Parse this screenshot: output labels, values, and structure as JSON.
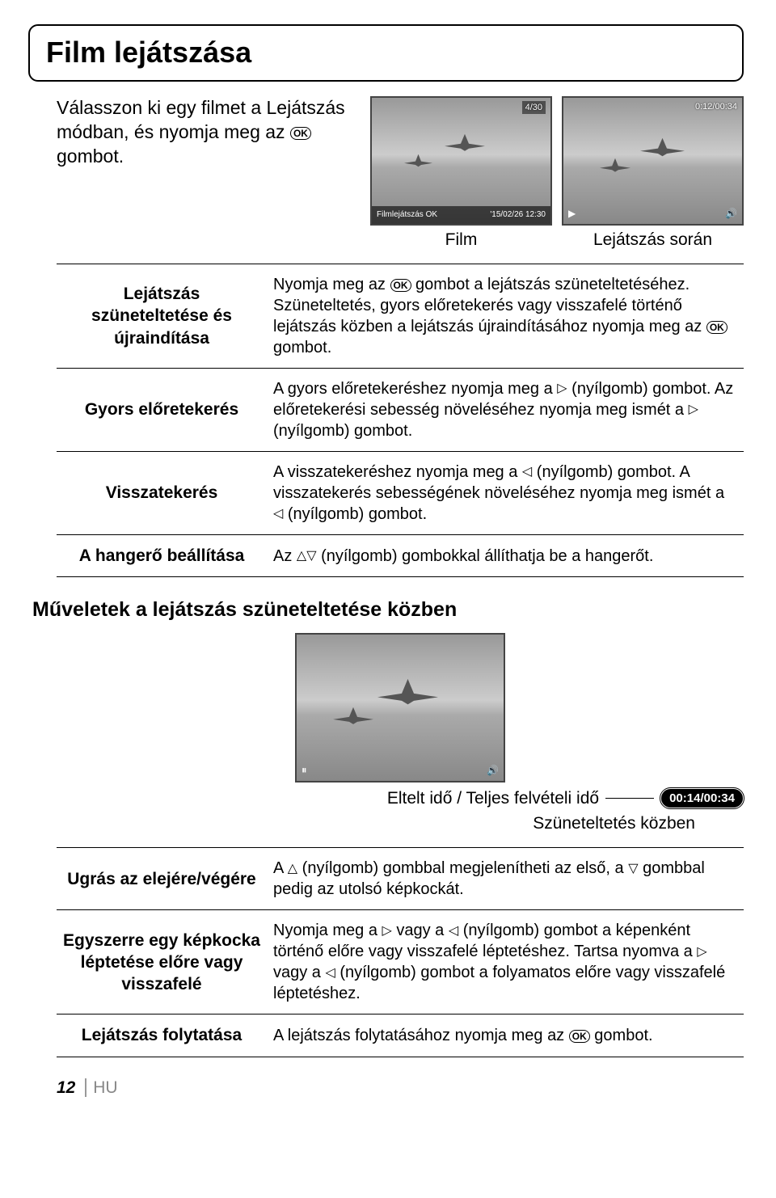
{
  "title": "Film lejátszása",
  "intro": "Válasszon ki egy filmet a Lejátszás módban, és nyomja meg az ",
  "intro_after": " gombot.",
  "shot1": {
    "top_right": "4/30",
    "bottom_left": "Filmlejátszás OK",
    "bottom_right": "'15/02/26 12:30",
    "caption": "Film"
  },
  "shot2": {
    "time": "0:12/00:34",
    "caption": "Lejátszás során"
  },
  "ok_label": "OK",
  "table1": [
    {
      "label": "Lejátszás szüneteltetése és újraindítása",
      "desc_parts": [
        "Nyomja meg az ",
        "OK",
        " gombot a lejátszás szüneteltetéséhez. Szüneteltetés, gyors előretekerés vagy visszafelé történő lejátszás közben a lejátszás újraindításához nyomja meg az ",
        "OK",
        " gombot."
      ]
    },
    {
      "label": "Gyors előretekerés",
      "desc_parts": [
        "A gyors előretekeréshez nyomja meg a ",
        "▷",
        " (nyílgomb) gombot. Az előretekerési sebesség növeléséhez nyomja meg ismét a ",
        "▷",
        " (nyílgomb) gombot."
      ]
    },
    {
      "label": "Visszatekerés",
      "desc_parts": [
        "A visszatekeréshez nyomja meg a ",
        "◁",
        " (nyílgomb) gombot. A visszatekerés sebességének növeléséhez nyomja meg ismét a ",
        "◁",
        " (nyílgomb) gombot."
      ]
    },
    {
      "label": "A hangerő beállítása",
      "desc_parts": [
        "Az ",
        "△▽",
        " (nyílgomb) gombokkal állíthatja be a hangerőt."
      ]
    }
  ],
  "subheading": "Műveletek a lejátszás szüneteltetése közben",
  "elapsed_label": "Eltelt idő / Teljes felvételi idő",
  "elapsed_badge": "00:14/00:34",
  "pause_caption": "Szüneteltetés közben",
  "table2": [
    {
      "label": "Ugrás az elejére/végére",
      "desc_parts": [
        "A ",
        "△",
        " (nyílgomb) gombbal megjelenítheti az első, a ",
        "▽",
        " gombbal pedig az utolsó képkockát."
      ]
    },
    {
      "label": "Egyszerre egy képkocka léptetése előre vagy visszafelé",
      "desc_parts": [
        "Nyomja meg a ",
        "▷",
        " vagy a ",
        "◁",
        " (nyílgomb) gombot a képenként történő előre vagy visszafelé léptetéshez. Tartsa nyomva a ",
        "▷",
        " vagy a ",
        "◁",
        " (nyílgomb) gombot a folyamatos előre vagy visszafelé léptetéshez."
      ]
    },
    {
      "label": "Lejátszás folytatása",
      "desc_parts": [
        "A lejátszás folytatásához nyomja meg az ",
        "OK",
        " gombot."
      ]
    }
  ],
  "page_number": "12",
  "lang_code": "HU"
}
